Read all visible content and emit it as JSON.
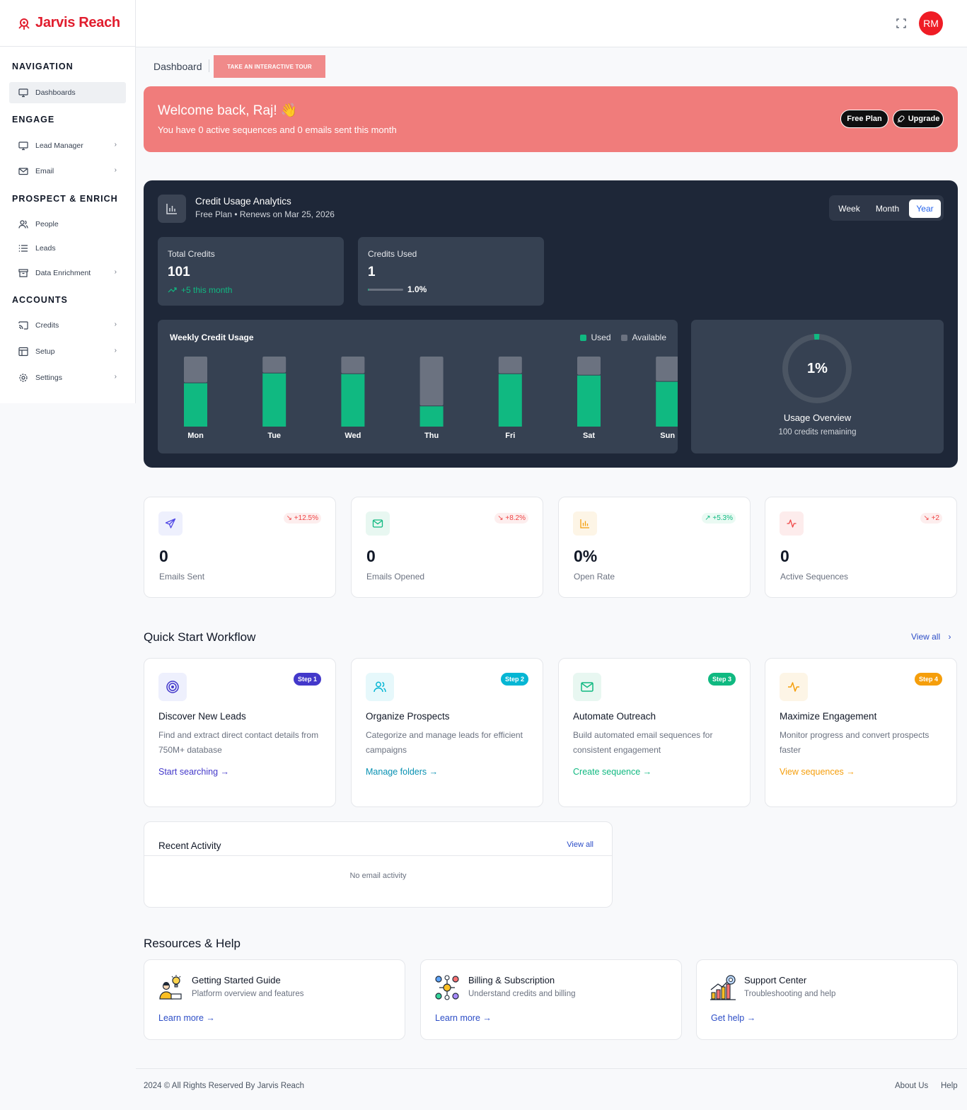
{
  "brand": {
    "name": "Jarvis Reach",
    "color": "#e11d2e"
  },
  "header": {
    "avatar_initials": "RM",
    "expand_icon": "fullscreen-icon"
  },
  "sidebar": {
    "sections": [
      {
        "title": "NAVIGATION"
      },
      {
        "title": "ENGAGE"
      },
      {
        "title": "PROSPECT & ENRICH"
      },
      {
        "title": "ACCOUNTS"
      }
    ],
    "items": [
      {
        "label": "Dashboards",
        "icon": "monitor-icon"
      },
      {
        "label": "Lead Manager",
        "icon": "monitor-icon"
      },
      {
        "label": "Email",
        "icon": "mail-icon"
      },
      {
        "label": "People",
        "icon": "users-icon"
      },
      {
        "label": "Leads",
        "icon": "list-icon"
      },
      {
        "label": "Data Enrichment",
        "icon": "archive-icon"
      },
      {
        "label": "Credits",
        "icon": "cast-icon"
      },
      {
        "label": "Setup",
        "icon": "layout-icon"
      },
      {
        "label": "Settings",
        "icon": "gear-icon"
      }
    ]
  },
  "breadcrumb": "Dashboard",
  "tour_button": "TAKE AN INTERACTIVE TOUR",
  "welcome": {
    "title": "Welcome back, Raj! 👋",
    "subtitle": "You have 0 active sequences and 0 emails sent this month",
    "plan_label": "Free Plan",
    "upgrade_label": "Upgrade"
  },
  "analytics": {
    "title": "Credit Usage Analytics",
    "subtitle": "Free Plan • Renews on Mar 25, 2026",
    "periods": [
      "Week",
      "Month",
      "Year"
    ],
    "selected_period": "Year",
    "total_credits": {
      "label": "Total Credits",
      "value": "101",
      "trend": "+5 this month"
    },
    "credits_used": {
      "label": "Credits Used",
      "value": "1",
      "percent": "1.0%",
      "fraction": 0.01
    },
    "overview": {
      "percent": "1%",
      "fraction": 0.01,
      "title": "Usage Overview",
      "subtitle": "100 credits remaining"
    }
  },
  "chart_data": {
    "type": "bar",
    "title": "Weekly Credit Usage",
    "categories": [
      "Mon",
      "Tue",
      "Wed",
      "Thu",
      "Fri",
      "Sat",
      "Sun"
    ],
    "series": [
      {
        "name": "Used",
        "values": [
          62,
          76,
          75,
          29,
          75,
          73,
          64
        ],
        "color": "#10b981"
      },
      {
        "name": "Available",
        "values": [
          38,
          24,
          25,
          71,
          25,
          27,
          36
        ],
        "color": "#6b7280"
      }
    ],
    "stacked": true,
    "ylim": [
      0,
      100
    ],
    "grid": false,
    "legend": "top-right"
  },
  "stats": [
    {
      "value": "0",
      "label": "Emails Sent",
      "delta": "+12.5%",
      "trend": "down",
      "icon": "send-icon",
      "icon_color": "#4f46e5",
      "icon_bg": "#eef0fd"
    },
    {
      "value": "0",
      "label": "Emails Opened",
      "delta": "+8.2%",
      "trend": "down",
      "icon": "mail-icon",
      "icon_color": "#10b981",
      "icon_bg": "#e8f7f1"
    },
    {
      "value": "0%",
      "label": "Open Rate",
      "delta": "+5.3%",
      "trend": "up",
      "icon": "bar-chart-icon",
      "icon_color": "#f59e0b",
      "icon_bg": "#fdf5e6"
    },
    {
      "value": "0",
      "label": "Active Sequences",
      "delta": "+2",
      "trend": "down",
      "icon": "activity-icon",
      "icon_color": "#ef4444",
      "icon_bg": "#fdecec"
    }
  ],
  "quick_start": {
    "title": "Quick Start Workflow",
    "view_all": "View all",
    "cards": [
      {
        "step": "Step 1",
        "title": "Discover New Leads",
        "desc": "Find and extract direct contact details from 750M+ database",
        "link": "Start searching",
        "color": "#4338ca",
        "bg": "#eef0fd",
        "icon": "target-icon"
      },
      {
        "step": "Step 2",
        "title": "Organize Prospects",
        "desc": "Categorize and manage leads for efficient campaigns",
        "link": "Manage folders",
        "color": "#06b6d4",
        "bg": "#e6f8fb",
        "icon": "users-icon"
      },
      {
        "step": "Step 3",
        "title": "Automate Outreach",
        "desc": "Build automated email sequences for consistent engagement",
        "link": "Create sequence",
        "color": "#10b981",
        "bg": "#e8f7f1",
        "icon": "mail-icon"
      },
      {
        "step": "Step 4",
        "title": "Maximize Engagement",
        "desc": "Monitor progress and convert prospects faster",
        "link": "View sequences",
        "color": "#f59e0b",
        "bg": "#fdf5e6",
        "icon": "activity-icon"
      }
    ]
  },
  "recent": {
    "title": "Recent Activity",
    "view_all": "View all",
    "empty": "No email activity"
  },
  "resources": {
    "title": "Resources & Help",
    "cards": [
      {
        "title": "Getting Started Guide",
        "desc": "Platform overview and features",
        "link": "Learn more",
        "icon": "idea-person-icon"
      },
      {
        "title": "Billing & Subscription",
        "desc": "Understand credits and billing",
        "link": "Learn more",
        "icon": "network-people-icon"
      },
      {
        "title": "Support Center",
        "desc": "Troubleshooting and help",
        "link": "Get help",
        "icon": "growth-chart-icon"
      }
    ]
  },
  "footer": {
    "copyright": "2024 © All Rights Reserved By Jarvis Reach",
    "links": [
      "About Us",
      "Help"
    ]
  }
}
